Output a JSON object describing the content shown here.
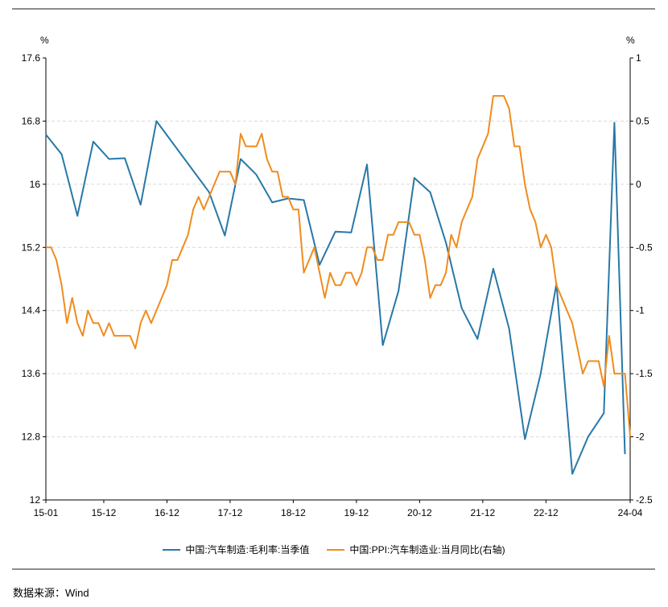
{
  "chart_data": {
    "type": "line",
    "left_axis": {
      "unit": "%",
      "min": 12,
      "max": 17.6,
      "ticks": [
        "12",
        "12.8",
        "13.6",
        "14.4",
        "15.2",
        "16",
        "16.8",
        "17.6"
      ]
    },
    "right_axis": {
      "unit": "%",
      "min": -2.5,
      "max": 1,
      "ticks": [
        "-2.5",
        "-2",
        "-1.5",
        "-1",
        "-0.5",
        "0",
        "0.5",
        "1"
      ]
    },
    "x_axis": {
      "start": "2015-01",
      "end": "2024-04",
      "tick_labels": [
        "15-01",
        "15-12",
        "16-12",
        "17-12",
        "18-12",
        "19-12",
        "20-12",
        "21-12",
        "22-12",
        "24-04"
      ]
    },
    "series": [
      {
        "name": "中国:汽车制造:毛利率:当季值",
        "axis": "left",
        "color": "#2878a8",
        "points": [
          [
            "2015-01",
            16.63
          ],
          [
            "2015-04",
            16.38
          ],
          [
            "2015-07",
            15.6
          ],
          [
            "2015-10",
            16.54
          ],
          [
            "2016-01",
            16.32
          ],
          [
            "2016-04",
            16.33
          ],
          [
            "2016-07",
            15.74
          ],
          [
            "2016-10",
            16.8
          ],
          [
            "2017-08",
            15.9
          ],
          [
            "2017-11",
            15.35
          ],
          [
            "2018-02",
            16.32
          ],
          [
            "2018-05",
            16.12
          ],
          [
            "2018-08",
            15.77
          ],
          [
            "2018-11",
            15.82
          ],
          [
            "2019-02",
            15.8
          ],
          [
            "2019-05",
            14.98
          ],
          [
            "2019-08",
            15.4
          ],
          [
            "2019-11",
            15.39
          ],
          [
            "2020-02",
            16.25
          ],
          [
            "2020-05",
            13.96
          ],
          [
            "2020-08",
            14.65
          ],
          [
            "2020-11",
            16.08
          ],
          [
            "2021-02",
            15.9
          ],
          [
            "2021-05",
            15.26
          ],
          [
            "2021-08",
            14.43
          ],
          [
            "2021-11",
            14.04
          ],
          [
            "2022-02",
            14.93
          ],
          [
            "2022-05",
            14.17
          ],
          [
            "2022-08",
            12.77
          ],
          [
            "2022-11",
            13.6
          ],
          [
            "2023-02",
            14.74
          ],
          [
            "2023-05",
            12.33
          ],
          [
            "2023-08",
            12.8
          ],
          [
            "2023-11",
            13.1
          ],
          [
            "2024-01",
            16.78
          ],
          [
            "2024-03",
            12.58
          ]
        ]
      },
      {
        "name": "中国:PPI:汽车制造业:当月同比(右轴)",
        "axis": "right",
        "color": "#ef8c1e",
        "points": [
          [
            "2015-01",
            -0.5
          ],
          [
            "2015-02",
            -0.5
          ],
          [
            "2015-03",
            -0.6
          ],
          [
            "2015-04",
            -0.8
          ],
          [
            "2015-05",
            -1.1
          ],
          [
            "2015-06",
            -0.9
          ],
          [
            "2015-07",
            -1.1
          ],
          [
            "2015-08",
            -1.2
          ],
          [
            "2015-09",
            -1.0
          ],
          [
            "2015-10",
            -1.1
          ],
          [
            "2015-11",
            -1.1
          ],
          [
            "2015-12",
            -1.2
          ],
          [
            "2016-01",
            -1.1
          ],
          [
            "2016-02",
            -1.2
          ],
          [
            "2016-03",
            -1.2
          ],
          [
            "2016-04",
            -1.2
          ],
          [
            "2016-05",
            -1.2
          ],
          [
            "2016-06",
            -1.3
          ],
          [
            "2016-07",
            -1.1
          ],
          [
            "2016-08",
            -1.0
          ],
          [
            "2016-09",
            -1.1
          ],
          [
            "2016-10",
            -1.0
          ],
          [
            "2016-11",
            -0.9
          ],
          [
            "2016-12",
            -0.8
          ],
          [
            "2017-01",
            -0.6
          ],
          [
            "2017-02",
            -0.6
          ],
          [
            "2017-03",
            -0.5
          ],
          [
            "2017-04",
            -0.4
          ],
          [
            "2017-05",
            -0.2
          ],
          [
            "2017-06",
            -0.1
          ],
          [
            "2017-07",
            -0.2
          ],
          [
            "2017-08",
            -0.1
          ],
          [
            "2017-09",
            0.0
          ],
          [
            "2017-10",
            0.1
          ],
          [
            "2017-11",
            0.1
          ],
          [
            "2017-12",
            0.1
          ],
          [
            "2018-01",
            0.0
          ],
          [
            "2018-02",
            0.4
          ],
          [
            "2018-03",
            0.3
          ],
          [
            "2018-04",
            0.3
          ],
          [
            "2018-05",
            0.3
          ],
          [
            "2018-06",
            0.4
          ],
          [
            "2018-07",
            0.2
          ],
          [
            "2018-08",
            0.1
          ],
          [
            "2018-09",
            0.1
          ],
          [
            "2018-10",
            -0.1
          ],
          [
            "2018-11",
            -0.1
          ],
          [
            "2018-12",
            -0.2
          ],
          [
            "2019-01",
            -0.2
          ],
          [
            "2019-02",
            -0.7
          ],
          [
            "2019-03",
            -0.6
          ],
          [
            "2019-04",
            -0.5
          ],
          [
            "2019-05",
            -0.7
          ],
          [
            "2019-06",
            -0.9
          ],
          [
            "2019-07",
            -0.7
          ],
          [
            "2019-08",
            -0.8
          ],
          [
            "2019-09",
            -0.8
          ],
          [
            "2019-10",
            -0.7
          ],
          [
            "2019-11",
            -0.7
          ],
          [
            "2019-12",
            -0.8
          ],
          [
            "2020-01",
            -0.7
          ],
          [
            "2020-02",
            -0.5
          ],
          [
            "2020-03",
            -0.5
          ],
          [
            "2020-04",
            -0.6
          ],
          [
            "2020-05",
            -0.6
          ],
          [
            "2020-06",
            -0.4
          ],
          [
            "2020-07",
            -0.4
          ],
          [
            "2020-08",
            -0.3
          ],
          [
            "2020-09",
            -0.3
          ],
          [
            "2020-10",
            -0.3
          ],
          [
            "2020-11",
            -0.4
          ],
          [
            "2020-12",
            -0.4
          ],
          [
            "2021-01",
            -0.6
          ],
          [
            "2021-02",
            -0.9
          ],
          [
            "2021-03",
            -0.8
          ],
          [
            "2021-04",
            -0.8
          ],
          [
            "2021-05",
            -0.7
          ],
          [
            "2021-06",
            -0.4
          ],
          [
            "2021-07",
            -0.5
          ],
          [
            "2021-08",
            -0.3
          ],
          [
            "2021-09",
            -0.2
          ],
          [
            "2021-10",
            -0.1
          ],
          [
            "2021-11",
            0.2
          ],
          [
            "2021-12",
            0.3
          ],
          [
            "2022-01",
            0.4
          ],
          [
            "2022-02",
            0.7
          ],
          [
            "2022-03",
            0.7
          ],
          [
            "2022-04",
            0.7
          ],
          [
            "2022-05",
            0.6
          ],
          [
            "2022-06",
            0.3
          ],
          [
            "2022-07",
            0.3
          ],
          [
            "2022-08",
            0.0
          ],
          [
            "2022-09",
            -0.2
          ],
          [
            "2022-10",
            -0.3
          ],
          [
            "2022-11",
            -0.5
          ],
          [
            "2022-12",
            -0.4
          ],
          [
            "2023-01",
            -0.5
          ],
          [
            "2023-02",
            -0.8
          ],
          [
            "2023-03",
            -0.9
          ],
          [
            "2023-04",
            -1.0
          ],
          [
            "2023-05",
            -1.1
          ],
          [
            "2023-06",
            -1.3
          ],
          [
            "2023-07",
            -1.5
          ],
          [
            "2023-08",
            -1.4
          ],
          [
            "2023-09",
            -1.4
          ],
          [
            "2023-10",
            -1.4
          ],
          [
            "2023-11",
            -1.6
          ],
          [
            "2023-12",
            -1.2
          ],
          [
            "2024-01",
            -1.5
          ],
          [
            "2024-02",
            -1.5
          ],
          [
            "2024-03",
            -1.5
          ],
          [
            "2024-04",
            -2.0
          ]
        ]
      }
    ],
    "grid": "horizontal dashed",
    "legend_position": "bottom"
  },
  "source": "数据来源：Wind"
}
